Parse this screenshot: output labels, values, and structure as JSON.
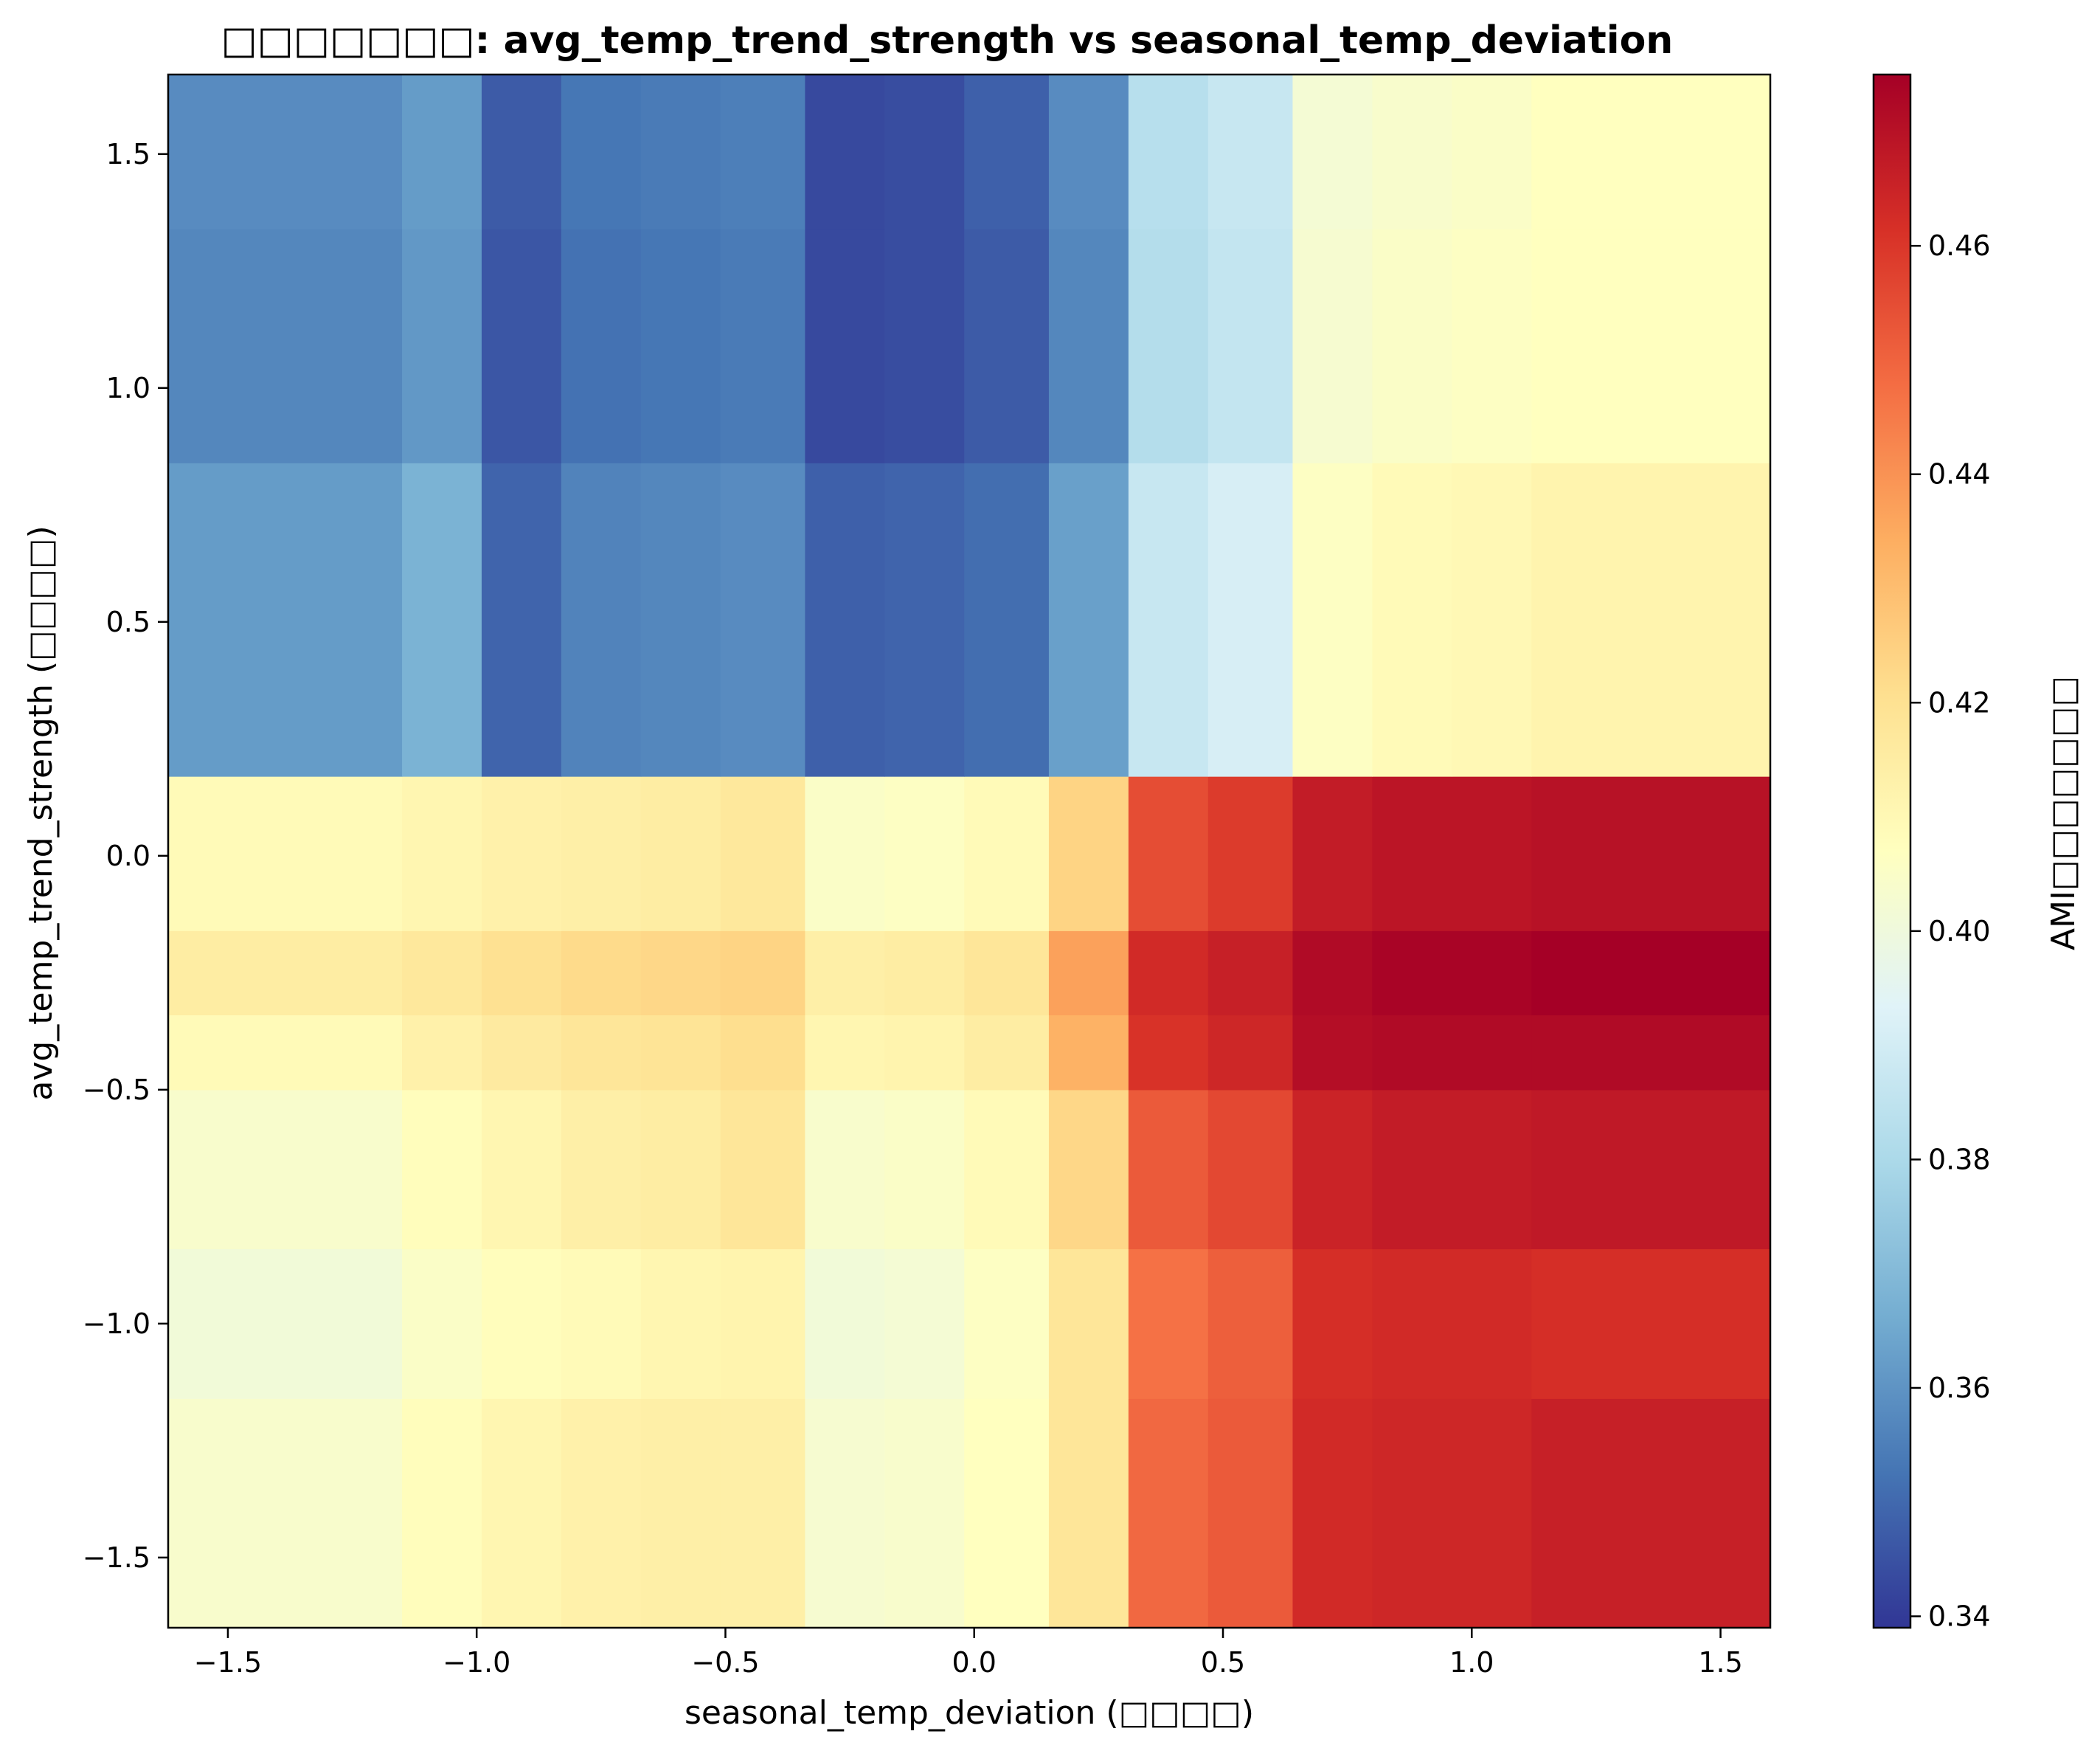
{
  "chart_data": {
    "type": "heatmap",
    "title": "□□□□□□□: avg_temp_trend_strength vs seasonal_temp_deviation",
    "xlabel": "seasonal_temp_deviation (□□□□)",
    "ylabel": "avg_temp_trend_strength (□□□□)",
    "colorbar_label": "AMI□□□□□□□",
    "colormap": "RdYlBu_r",
    "colormap_stops": [
      "#313695",
      "#4575b4",
      "#74add1",
      "#abd9e9",
      "#e0f3f8",
      "#ffffbf",
      "#fee090",
      "#fdae61",
      "#f46d43",
      "#d73027",
      "#a50026"
    ],
    "xlim": [
      -1.62,
      1.6
    ],
    "ylim": [
      -1.65,
      1.67
    ],
    "clim": [
      0.339,
      0.475
    ],
    "x_edges": [
      -1.62,
      -1.15,
      -0.99,
      -0.83,
      -0.67,
      -0.51,
      -0.34,
      -0.18,
      -0.02,
      0.15,
      0.31,
      0.47,
      0.64,
      0.8,
      0.96,
      1.12,
      1.6
    ],
    "y_edges": [
      -1.65,
      -1.16,
      -0.84,
      -0.5,
      -0.34,
      -0.16,
      0.17,
      0.84,
      1.34,
      1.67
    ],
    "x_ticks": [
      -1.5,
      -1.0,
      -0.5,
      0.0,
      0.5,
      1.0,
      1.5
    ],
    "x_tick_labels": [
      "−1.5",
      "−1.0",
      "−0.5",
      "0.0",
      "0.5",
      "1.0",
      "1.5"
    ],
    "y_ticks": [
      -1.5,
      -1.0,
      -0.5,
      0.0,
      0.5,
      1.0,
      1.5
    ],
    "y_tick_labels": [
      "−1.5",
      "−1.0",
      "−0.5",
      "0.0",
      "0.5",
      "1.0",
      "1.5"
    ],
    "colorbar_ticks": [
      0.34,
      0.36,
      0.38,
      0.4,
      0.42,
      0.44,
      0.46
    ],
    "colorbar_tick_labels": [
      "0.34",
      "0.36",
      "0.38",
      "0.40",
      "0.42",
      "0.44",
      "0.46"
    ],
    "values": [
      [
        0.404,
        0.408,
        0.411,
        0.413,
        0.414,
        0.414,
        0.403,
        0.404,
        0.407,
        0.418,
        0.449,
        0.452,
        0.463,
        0.464,
        0.464,
        0.466
      ],
      [
        0.401,
        0.405,
        0.408,
        0.409,
        0.411,
        0.412,
        0.401,
        0.402,
        0.406,
        0.418,
        0.447,
        0.451,
        0.462,
        0.463,
        0.463,
        0.462
      ],
      [
        0.404,
        0.408,
        0.411,
        0.414,
        0.415,
        0.418,
        0.404,
        0.405,
        0.409,
        0.423,
        0.452,
        0.456,
        0.465,
        0.467,
        0.467,
        0.468
      ],
      [
        0.409,
        0.413,
        0.416,
        0.418,
        0.419,
        0.421,
        0.411,
        0.412,
        0.415,
        0.433,
        0.461,
        0.464,
        0.471,
        0.472,
        0.472,
        0.472
      ],
      [
        0.415,
        0.417,
        0.42,
        0.422,
        0.423,
        0.424,
        0.414,
        0.415,
        0.418,
        0.437,
        0.463,
        0.466,
        0.472,
        0.474,
        0.474,
        0.475
      ],
      [
        0.409,
        0.411,
        0.413,
        0.414,
        0.415,
        0.417,
        0.405,
        0.406,
        0.409,
        0.424,
        0.455,
        0.459,
        0.467,
        0.469,
        0.469,
        0.47
      ],
      [
        0.362,
        0.368,
        0.349,
        0.356,
        0.357,
        0.358,
        0.348,
        0.349,
        0.351,
        0.363,
        0.387,
        0.391,
        0.406,
        0.409,
        0.41,
        0.412
      ],
      [
        0.357,
        0.361,
        0.346,
        0.352,
        0.353,
        0.354,
        0.343,
        0.344,
        0.347,
        0.357,
        0.382,
        0.386,
        0.403,
        0.405,
        0.406,
        0.407
      ],
      [
        0.358,
        0.362,
        0.347,
        0.353,
        0.354,
        0.355,
        0.343,
        0.344,
        0.348,
        0.358,
        0.383,
        0.387,
        0.402,
        0.404,
        0.405,
        0.407
      ]
    ]
  }
}
